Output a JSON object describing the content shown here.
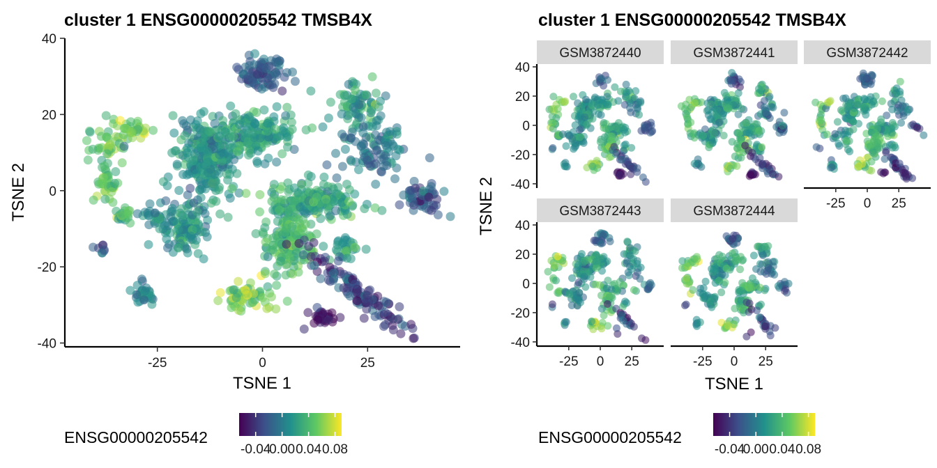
{
  "palette": [
    "#440154",
    "#3b528b",
    "#21908c",
    "#5dc863",
    "#fde725"
  ],
  "strip_color": "#d9d9d9",
  "chart_data": [
    {
      "type": "scatter",
      "title": "cluster 1 ENSG00000205542 TMSB4X",
      "xlabel": "TSNE 1",
      "ylabel": "TSNE 2",
      "xlim": [
        -47,
        47
      ],
      "ylim": [
        -41,
        40
      ],
      "xticks": [
        -25,
        0,
        25
      ],
      "yticks": [
        40,
        20,
        0,
        -20,
        -40
      ],
      "color_by": "ENSG00000205542",
      "legend": {
        "title": "ENSG00000205542",
        "position": "bottom",
        "ticks": [
          "-0.04",
          "0.00",
          "0.04",
          "0.08"
        ],
        "range": [
          -0.065,
          0.09
        ]
      },
      "point_alpha": 0.55
    },
    {
      "type": "scatter",
      "title": "cluster 1 ENSG00000205542 TMSB4X",
      "xlabel": "TSNE 1",
      "ylabel": "TSNE 2",
      "xlim": [
        -47,
        47
      ],
      "ylim": [
        -41,
        40
      ],
      "xticks": [
        -25,
        0,
        25
      ],
      "yticks": [
        40,
        20,
        0,
        -20,
        -40
      ],
      "facets": [
        "GSM3872440",
        "GSM3872441",
        "GSM3872442",
        "GSM3872443",
        "GSM3872444"
      ],
      "color_by": "ENSG00000205542",
      "legend": {
        "title": "ENSG00000205542",
        "position": "bottom",
        "ticks": [
          "-0.04",
          "0.00",
          "0.04",
          "0.08"
        ],
        "range": [
          -0.065,
          0.09
        ]
      },
      "point_alpha": 0.55
    }
  ]
}
